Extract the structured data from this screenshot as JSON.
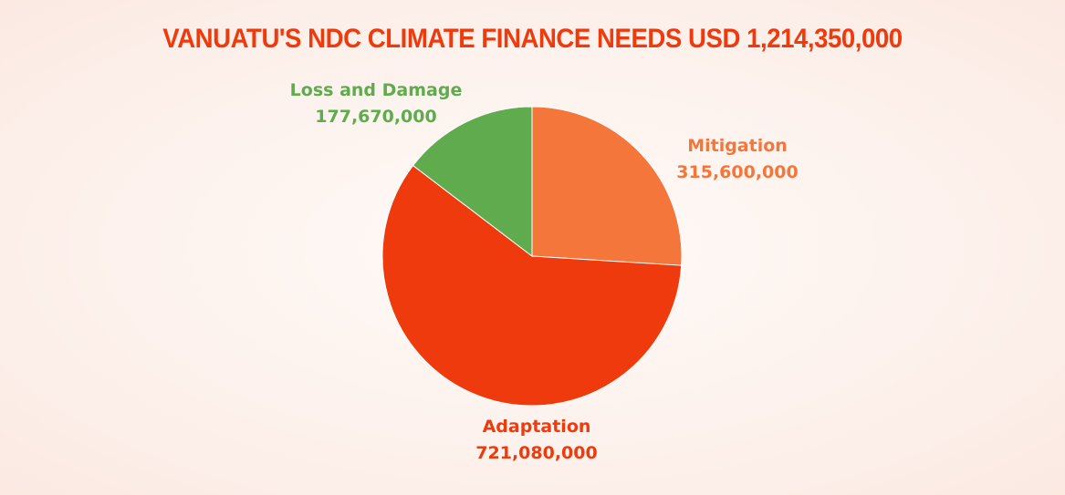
{
  "chart_data": {
    "type": "pie",
    "title": "VANUATU'S NDC CLIMATE FINANCE NEEDS USD 1,214,350,000",
    "slices": [
      {
        "label": "Mitigation",
        "value": 315600000,
        "value_label": "315,600,000",
        "color": "#f5763a"
      },
      {
        "label": "Adaptation",
        "value": 721080000,
        "value_label": "721,080,000",
        "color": "#ee3a0c"
      },
      {
        "label": "Loss and Damage",
        "value": 177670000,
        "value_label": "177,670,000",
        "color": "#5fab4e"
      }
    ],
    "title_color": "#ee3a0c"
  }
}
